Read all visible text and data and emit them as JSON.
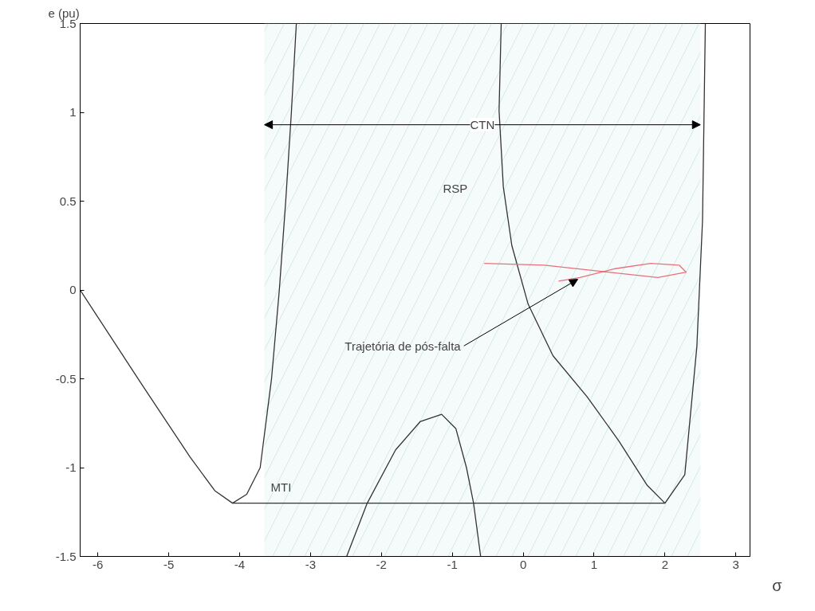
{
  "chart_data": {
    "type": "line",
    "xlabel": "σ",
    "ylabel": "e (pu)",
    "xlim": [
      -6.25,
      3.2
    ],
    "ylim": [
      -1.5,
      1.5
    ],
    "xticks": [
      -6,
      -5,
      -4,
      -3,
      -2,
      -1,
      0,
      1,
      2,
      3
    ],
    "yticks": [
      -1.5,
      {
        "value": -1,
        "label": "-1"
      },
      -0.5,
      0,
      0.5,
      {
        "value": 1,
        "label": "1"
      },
      1.5
    ],
    "grid": false,
    "line_style": "solid",
    "series": [
      {
        "color": "#333333",
        "x": [
          -6.25,
          -5.4,
          -4.7,
          -4.35,
          -4.1,
          -3.9,
          -3.71,
          -3.55,
          -3.44,
          -3.35,
          -3.27,
          -3.2
        ],
        "values": [
          0,
          -0.52,
          -0.94,
          -1.13,
          -1.2,
          -1.15,
          -1.0,
          -0.5,
          0,
          0.5,
          1.0,
          1.5
        ]
      },
      {
        "color": "#333333",
        "x": [
          -4.1,
          2.0
        ],
        "values": [
          -1.2,
          -1.2
        ]
      },
      {
        "color": "#333333",
        "x": [
          -0.31,
          -0.34,
          -0.28,
          -0.16,
          0.07,
          0.42,
          0.9,
          1.35,
          1.75,
          2.0,
          2.28,
          2.45,
          2.53,
          2.57
        ],
        "values": [
          1.5,
          1.01,
          0.58,
          0.25,
          -0.08,
          -0.37,
          -0.6,
          -0.85,
          -1.1,
          -1.2,
          -1.04,
          -0.32,
          0.39,
          1.5
        ]
      },
      {
        "color": "#333333",
        "x": [
          -2.49,
          -2.2,
          -1.8,
          -1.45,
          -1.15,
          -0.95,
          -0.8,
          -0.7,
          -0.6
        ],
        "values": [
          -1.5,
          -1.2,
          -0.9,
          -0.74,
          -0.7,
          -0.78,
          -1.0,
          -1.2,
          -1.5
        ]
      },
      {
        "color": "#e8707a",
        "x": [
          -0.55,
          0.3,
          1.2,
          1.9,
          2.3,
          2.2,
          1.8,
          1.3,
          0.8,
          0.5
        ],
        "values": [
          0.15,
          0.14,
          0.1,
          0.07,
          0.1,
          0.14,
          0.15,
          0.12,
          0.07,
          0.05
        ]
      }
    ],
    "bands": [
      {
        "axis": "x",
        "from": -3.65,
        "to": 2.5,
        "label": "CTN"
      }
    ],
    "annotations": [
      "RSP",
      "MTI",
      {
        "text": "Trajetória de pós-falta",
        "x": 0.77,
        "y": 0.06
      }
    ]
  }
}
